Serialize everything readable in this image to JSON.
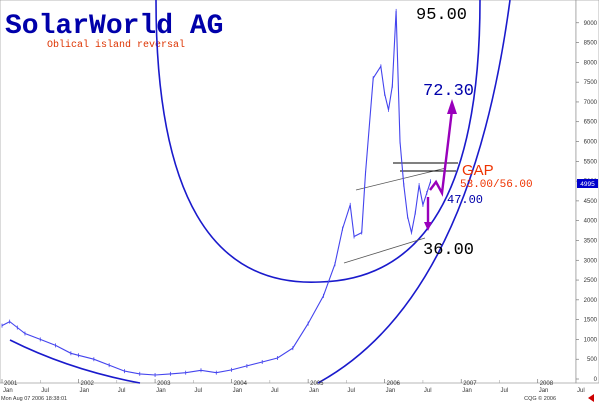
{
  "chart_data": {
    "type": "line",
    "title": "SolarWorld AG",
    "subtitle": "Oblical island reversal",
    "y_axis": {
      "range": [
        0,
        9500
      ],
      "ticks": [
        0,
        500,
        1000,
        1500,
        2000,
        2500,
        3000,
        3500,
        4000,
        4500,
        5000,
        5500,
        6000,
        6500,
        7000,
        7500,
        8000,
        8500,
        9000
      ]
    },
    "x_axis": {
      "years": [
        "2001",
        "2002",
        "2003",
        "2004",
        "2005",
        "2006",
        "2007",
        "2008"
      ],
      "months": [
        "Jan",
        "Jul"
      ]
    },
    "last_price": "4995",
    "price_series": {
      "x": [
        2001.0,
        2001.1,
        2001.2,
        2001.3,
        2001.5,
        2001.7,
        2001.9,
        2002.0,
        2002.2,
        2002.4,
        2002.6,
        2002.8,
        2003.0,
        2003.2,
        2003.4,
        2003.6,
        2003.8,
        2004.0,
        2004.2,
        2004.4,
        2004.6,
        2004.8,
        2005.0,
        2005.2,
        2005.35,
        2005.45,
        2005.55,
        2005.6,
        2005.7,
        2005.75,
        2005.85,
        2005.95,
        2006.0,
        2006.05,
        2006.1,
        2006.15,
        2006.2,
        2006.25,
        2006.3,
        2006.35,
        2006.4,
        2006.45,
        2006.5,
        2006.55,
        2006.6
      ],
      "y": [
        1350,
        1450,
        1300,
        1150,
        1000,
        850,
        650,
        600,
        500,
        350,
        200,
        130,
        100,
        130,
        160,
        220,
        160,
        230,
        330,
        430,
        530,
        780,
        1400,
        2100,
        2900,
        3800,
        4400,
        3600,
        3700,
        5200,
        7600,
        7900,
        7200,
        6800,
        7400,
        9300,
        6000,
        4900,
        4100,
        3700,
        4200,
        4900,
        4400,
        4700,
        4995
      ]
    },
    "annotations": {
      "upper_circle_label": "95.00",
      "target_label": "72.30",
      "gap_label": "GAP",
      "gap_range": "53.00/56.00",
      "support_label": "47.00",
      "lower_circle_label": "36.00"
    },
    "colors": {
      "title": "#0000aa",
      "subtitle": "#dd3300",
      "circle": "#1a1acc",
      "price": "#4444ee",
      "target_arrow": "#9900bb",
      "gap_text": "#ee3300",
      "labels_dark": "#000000",
      "label_blue": "#0000aa",
      "last_price_box": "#0000cc"
    }
  },
  "footer": {
    "timestamp": "Mon Aug 07 2006 18:38:01",
    "copyright": "CQG © 2006"
  }
}
